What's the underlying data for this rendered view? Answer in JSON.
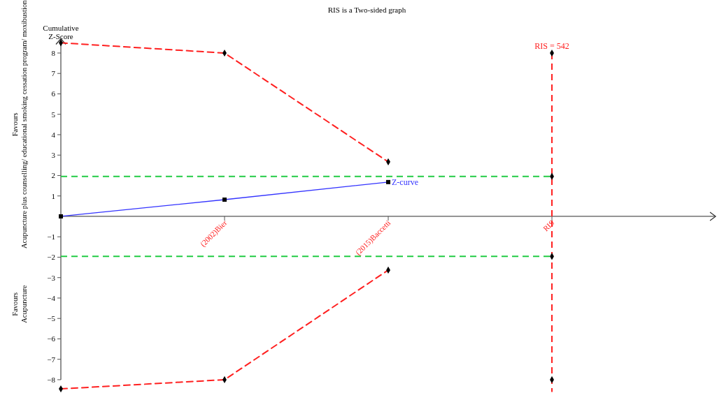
{
  "chart_data": {
    "type": "line",
    "title": "RIS is a Two-sided graph",
    "ylabel": "Cumulative\nZ-Score",
    "categories": [
      null,
      "(2002)Bier",
      "(2015)Baccetti",
      "RIS"
    ],
    "ylim": [
      -8.6,
      8.7
    ],
    "yticks": [
      -8,
      -7,
      -6,
      -5,
      -4,
      -3,
      -2,
      -1,
      1,
      2,
      3,
      4,
      5,
      6,
      7,
      8
    ],
    "series": [
      {
        "name": "Z-curve",
        "color": "#3333ff",
        "values": [
          0,
          0.82,
          1.68,
          null
        ],
        "marker": "square",
        "line_style": "solid"
      },
      {
        "color": "#ff2020",
        "values": [
          8.5,
          8,
          2.67,
          null
        ],
        "marker": "diamond",
        "line_style": "dashed"
      },
      {
        "color": "#ff2020",
        "values": [
          -8.45,
          -8,
          -2.63,
          null
        ],
        "marker": "diamond",
        "line_style": "dashed"
      },
      {
        "type": "scatter",
        "color": "#000000",
        "x": [
          "RIS",
          "RIS",
          "RIS",
          "RIS"
        ],
        "values": [
          8,
          1.96,
          -1.96,
          -8
        ],
        "marker": "diamond"
      }
    ],
    "ref_lines": [
      {
        "axis": "y",
        "value": 1.96,
        "color": "#22cc44",
        "line_style": "dashed"
      },
      {
        "axis": "y",
        "value": -1.96,
        "color": "#22cc44",
        "line_style": "dashed"
      },
      {
        "axis": "x",
        "value": "RIS",
        "label": "RIS = 542",
        "color": "#ff2020",
        "line_style": "dashed"
      }
    ],
    "annotations": [
      "Favours\nAcupuncture plus counselling/ educational smoking cessation program/ moxibustion",
      "Favours\nAcupuncture"
    ],
    "legend": false
  }
}
